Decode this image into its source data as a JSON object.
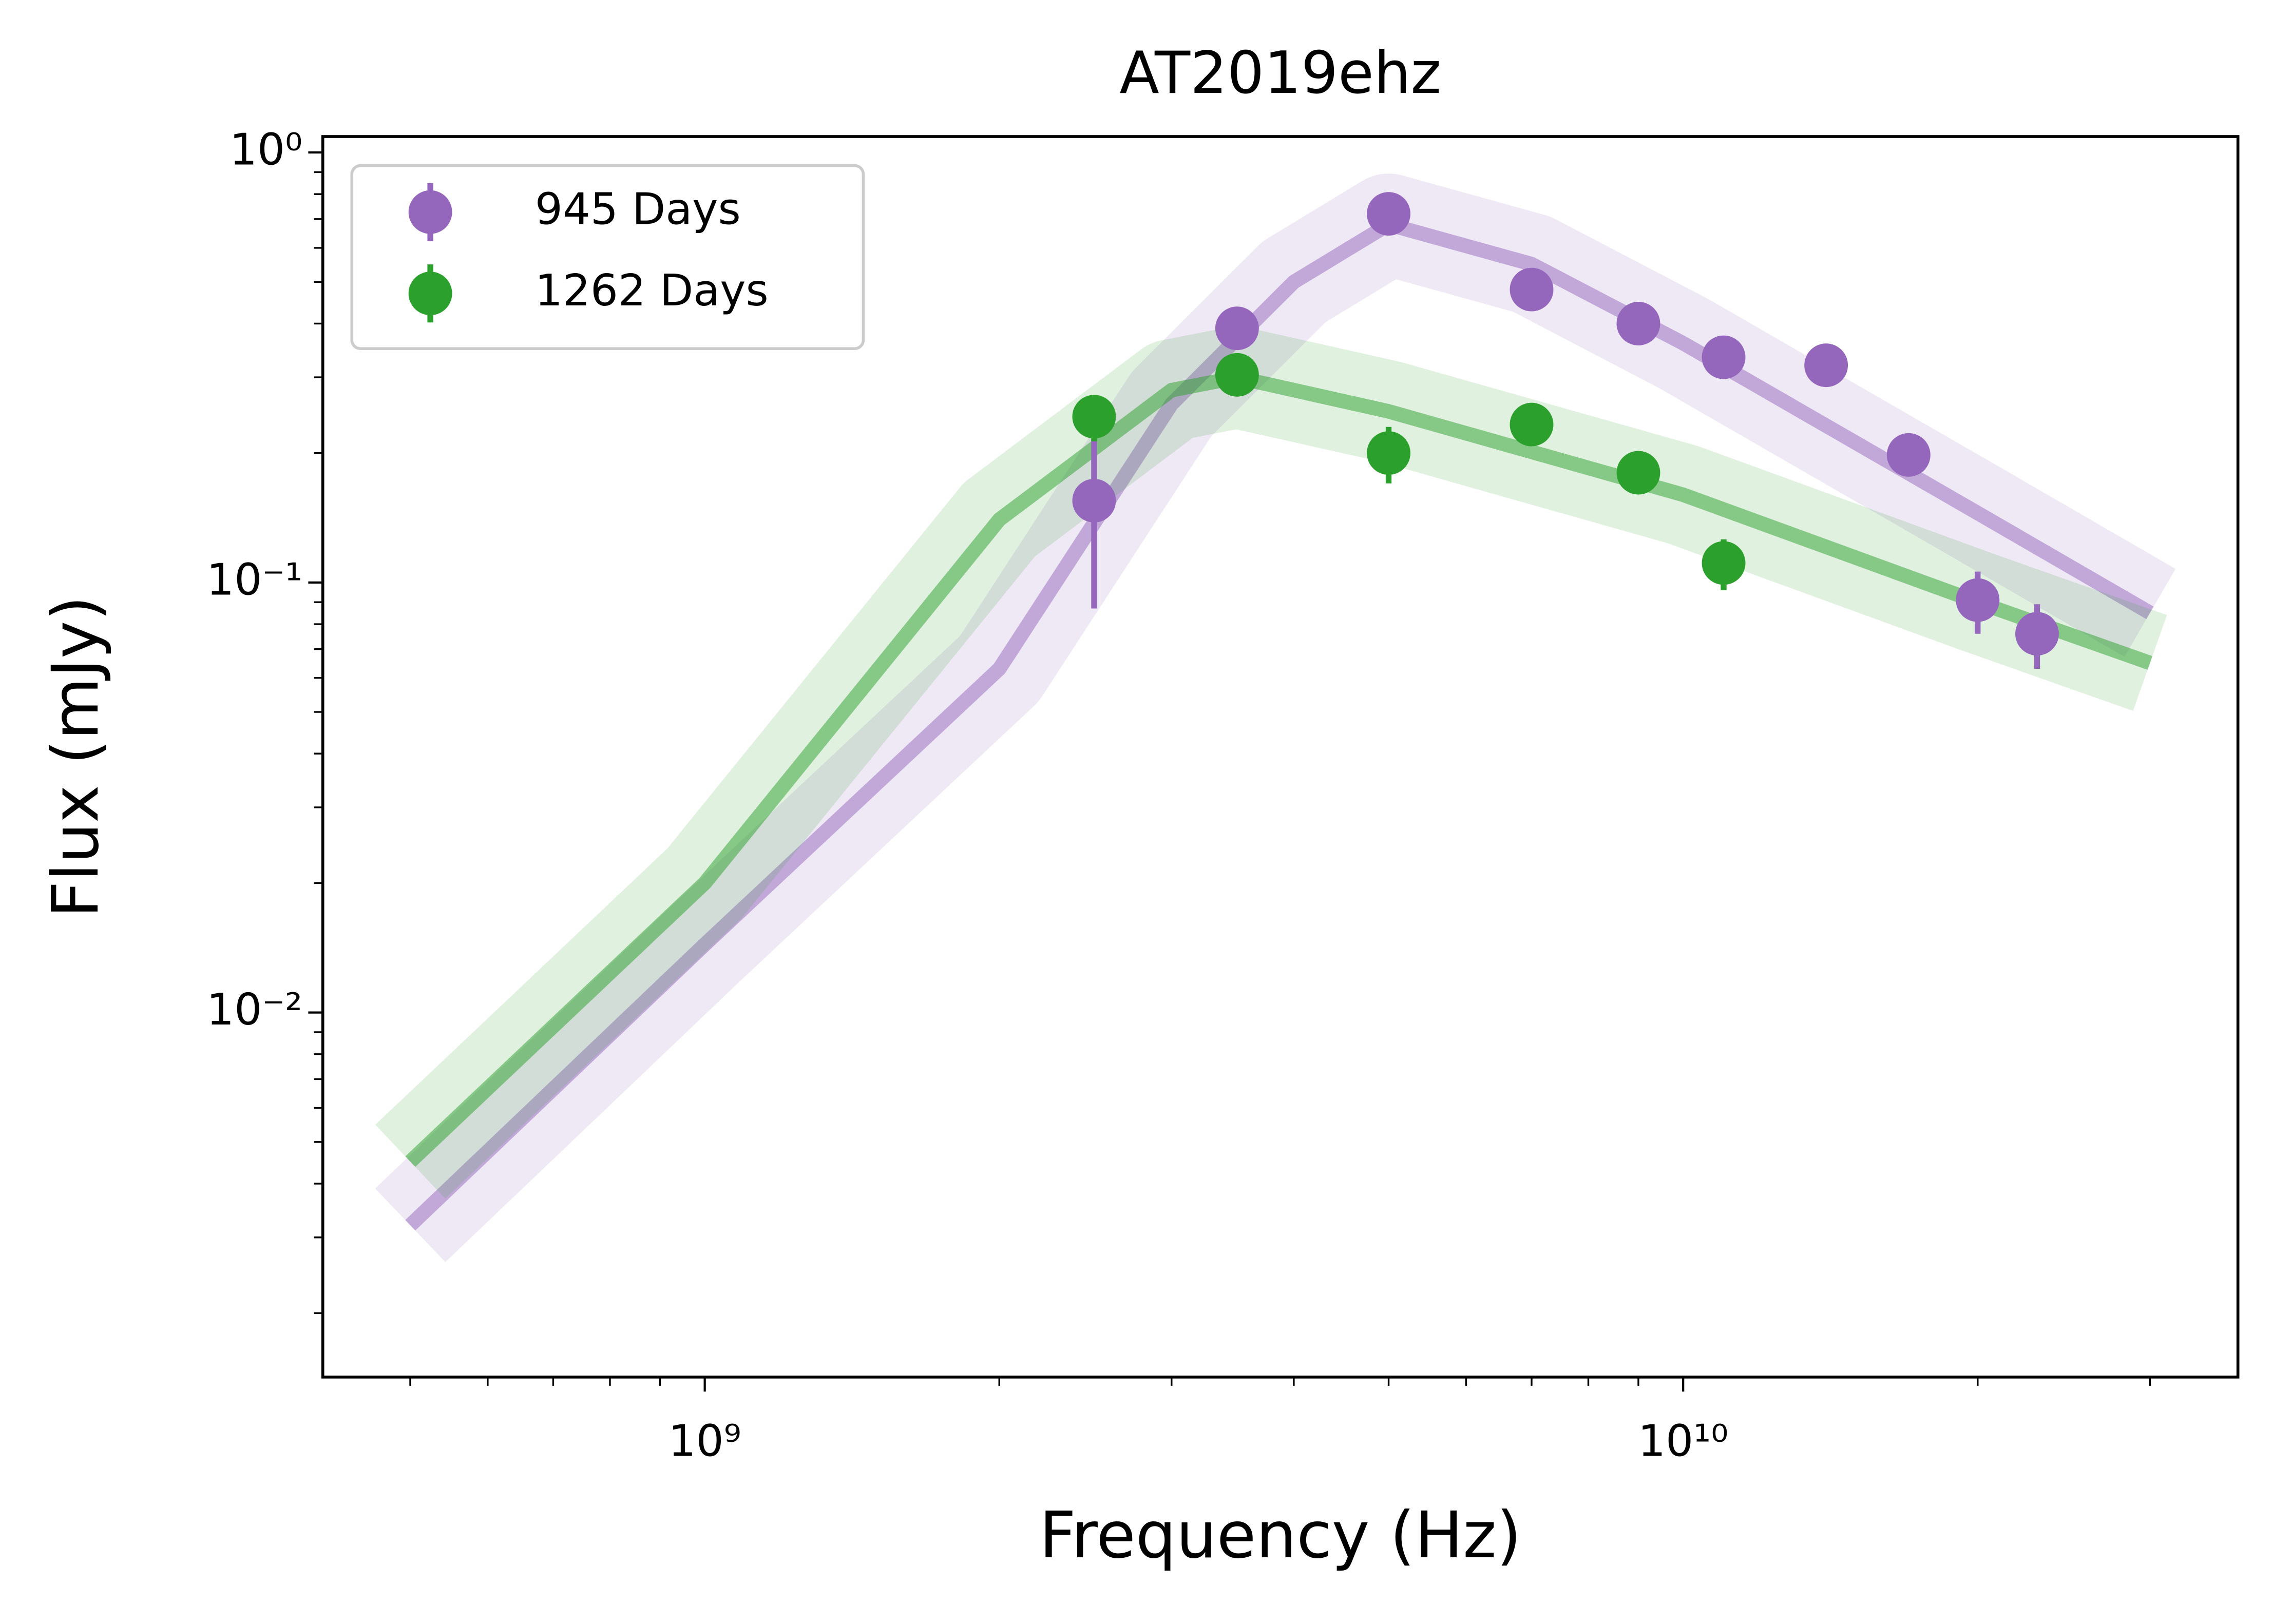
{
  "chart_data": {
    "type": "scatter",
    "title": "AT2019ehz",
    "xlabel": "Frequency (Hz)",
    "ylabel": "Flux (mJy)",
    "xscale": "log",
    "yscale": "log",
    "xlim": [
      407000000,
      36900000000
    ],
    "ylim": [
      0.00142,
      1.089
    ],
    "xticks": [
      {
        "value": 1000000000,
        "label": "10⁹"
      },
      {
        "value": 10000000000,
        "label": "10¹⁰"
      }
    ],
    "xminorticks": [
      500000000,
      600000000,
      700000000,
      800000000,
      900000000,
      2000000000,
      3000000000,
      4000000000,
      5000000000,
      6000000000,
      7000000000,
      8000000000,
      9000000000,
      20000000000,
      30000000000
    ],
    "yticks": [
      {
        "value": 0.01,
        "label": "10⁻²"
      },
      {
        "value": 0.1,
        "label": "10⁻¹"
      },
      {
        "value": 1,
        "label": "10⁰"
      }
    ],
    "yminorticks": [
      0.002,
      0.003,
      0.004,
      0.005,
      0.006,
      0.007,
      0.008,
      0.009,
      0.02,
      0.03,
      0.04,
      0.05,
      0.06,
      0.07,
      0.08,
      0.09,
      0.2,
      0.3,
      0.4,
      0.5,
      0.6,
      0.7,
      0.8,
      0.9
    ],
    "legend": "upper left",
    "series": [
      {
        "name": "945 Days",
        "color": "#9467bd",
        "x": [
          2500000000,
          3500000000,
          5000000000,
          7000000000,
          9000000000,
          11000000000,
          14000000000,
          17000000000,
          20000000000,
          23000000000
        ],
        "values": [
          0.155,
          0.39,
          0.72,
          0.48,
          0.4,
          0.334,
          0.32,
          0.198,
          0.091,
          0.076
        ],
        "errors": [
          0.068,
          0.02,
          0.03,
          0.03,
          0.02,
          0.02,
          0.02,
          0.015,
          0.015,
          0.013
        ],
        "model_x": [
          500000000,
          1000000000,
          2000000000,
          3000000000,
          4000000000,
          5000000000,
          7000000000,
          10000000000,
          20000000000,
          30000000000
        ],
        "model_values": [
          0.0032,
          0.0144,
          0.063,
          0.26,
          0.5,
          0.68,
          0.55,
          0.36,
          0.145,
          0.085
        ]
      },
      {
        "name": "1262 Days",
        "color": "#2ca02c",
        "x": [
          2500000000,
          3500000000,
          5000000000,
          7000000000,
          9000000000,
          11000000000
        ],
        "values": [
          0.243,
          0.304,
          0.2,
          0.233,
          0.18,
          0.111
        ],
        "errors": [
          0.03,
          0.025,
          0.03,
          0.02,
          0.015,
          0.015
        ],
        "model_x": [
          500000000,
          1000000000,
          2000000000,
          3000000000,
          3500000000,
          5000000000,
          10000000000,
          20000000000,
          30000000000
        ],
        "model_values": [
          0.0045,
          0.02,
          0.14,
          0.28,
          0.3,
          0.25,
          0.16,
          0.09,
          0.065
        ]
      }
    ]
  }
}
